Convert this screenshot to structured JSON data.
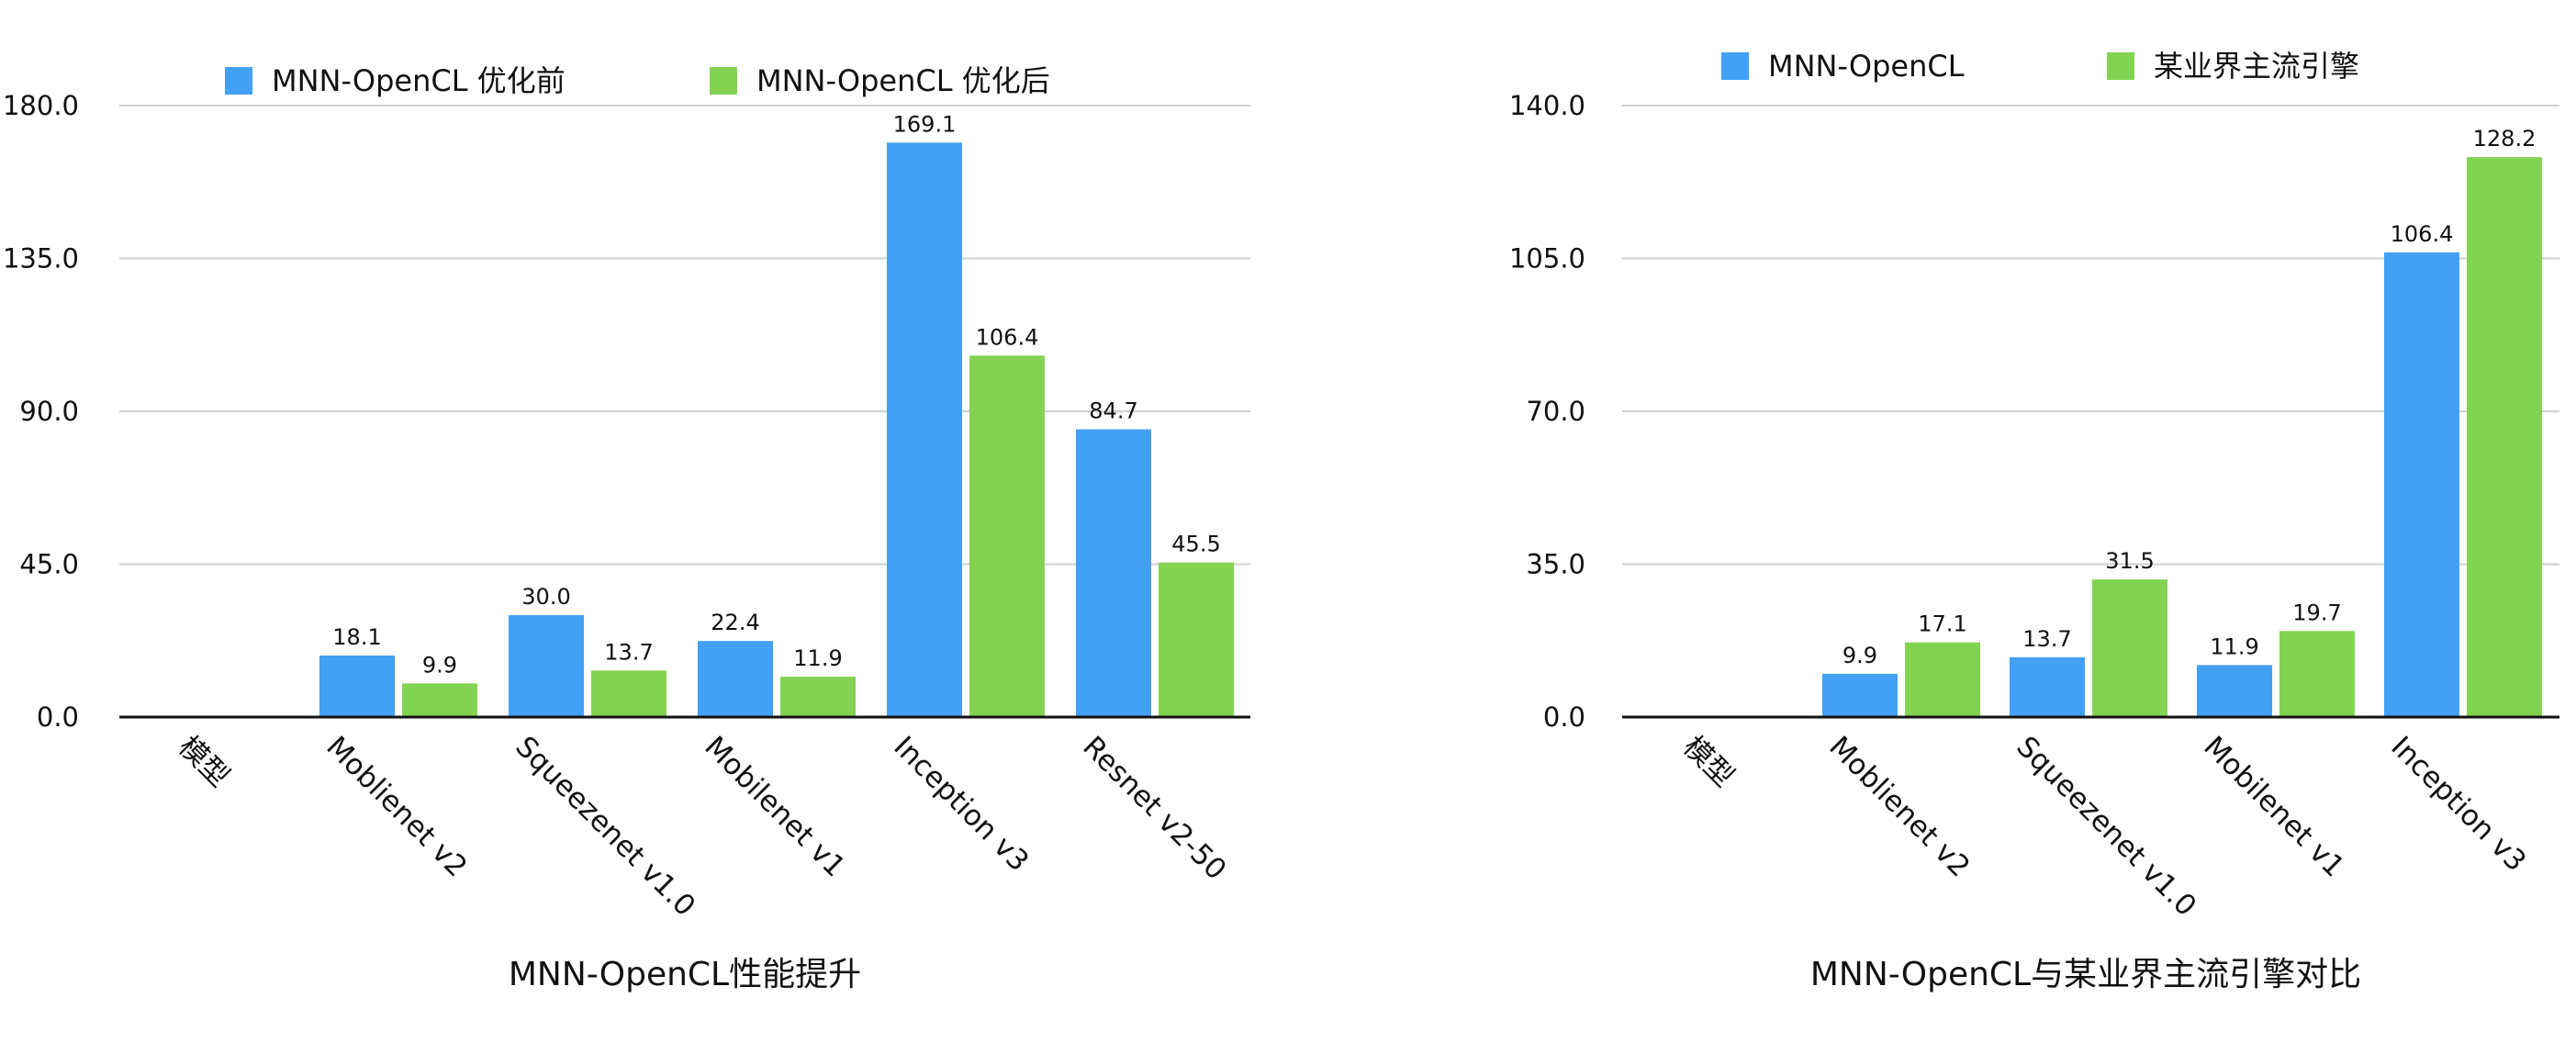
{
  "chart_data": [
    {
      "type": "bar",
      "title": "MNN-OpenCL性能提升",
      "categories": [
        "模型",
        "Moblienet v2",
        "Squeezenet v1.0",
        "Mobilenet v1",
        "Inception v3",
        "Resnet v2-50"
      ],
      "series": [
        {
          "name": "MNN-OpenCL 优化前",
          "color": "#42a0f5",
          "values": [
            null,
            18.1,
            30.0,
            22.4,
            169.1,
            84.7
          ],
          "labels": [
            "",
            "18.1",
            "30.0",
            "22.4",
            "169.1",
            "84.7"
          ]
        },
        {
          "name": "MNN-OpenCL 优化后",
          "color": "#83d352",
          "values": [
            null,
            9.9,
            13.7,
            11.9,
            106.4,
            45.5
          ],
          "labels": [
            "",
            "9.9",
            "13.7",
            "11.9",
            "106.4",
            "45.5"
          ]
        }
      ],
      "ylim": [
        0,
        180
      ],
      "yticks": [
        "0.0",
        "45.0",
        "90.0",
        "135.0",
        "180.0"
      ],
      "grid": true,
      "legend": "top"
    },
    {
      "type": "bar",
      "title": "MNN-OpenCL与某业界主流引擎对比",
      "categories": [
        "模型",
        "Moblienet v2",
        "Squeezenet v1.0",
        "Mobilenet v1",
        "Inception v3"
      ],
      "series": [
        {
          "name": "MNN-OpenCL",
          "color": "#42a0f5",
          "values": [
            null,
            9.9,
            13.7,
            11.9,
            106.4
          ],
          "labels": [
            "",
            "9.9",
            "13.7",
            "11.9",
            "106.4"
          ]
        },
        {
          "name": "某业界主流引擎",
          "color": "#83d352",
          "values": [
            null,
            17.1,
            31.5,
            19.7,
            128.2
          ],
          "labels": [
            "",
            "17.1",
            "31.5",
            "19.7",
            "128.2"
          ]
        }
      ],
      "ylim": [
        0,
        140
      ],
      "yticks": [
        "0.0",
        "35.0",
        "70.0",
        "105.0",
        "140.0"
      ],
      "grid": true,
      "legend": "top"
    }
  ]
}
